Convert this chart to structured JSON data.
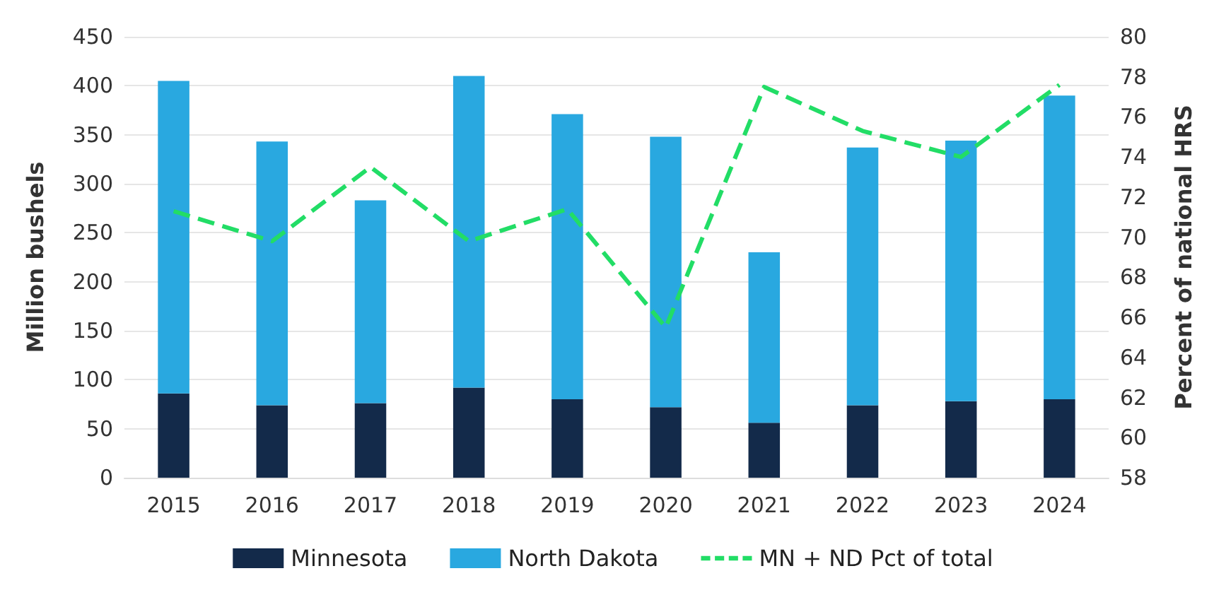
{
  "chart_data": {
    "type": "bar",
    "stacked": true,
    "categories": [
      "2015",
      "2016",
      "2017",
      "2018",
      "2019",
      "2020",
      "2021",
      "2022",
      "2023",
      "2024"
    ],
    "ylabel": "Million bushels",
    "y2label": "Percent of national HRS",
    "ylim": [
      0,
      450
    ],
    "yticks": [
      0,
      50,
      100,
      150,
      200,
      250,
      300,
      350,
      400,
      450
    ],
    "y2lim": [
      58,
      80
    ],
    "y2ticks": [
      58,
      60,
      62,
      64,
      66,
      68,
      70,
      72,
      74,
      76,
      78,
      80
    ],
    "grid": "y",
    "legend": "bottom",
    "series": [
      {
        "name": "Minnesota",
        "color": "#132a4a",
        "values": [
          86,
          74,
          76,
          92,
          80,
          72,
          56,
          74,
          78,
          80
        ]
      },
      {
        "name": "North Dakota",
        "color": "#29a8e0",
        "values": [
          319,
          269,
          207,
          318,
          291,
          276,
          174,
          263,
          266,
          310
        ]
      },
      {
        "name": "MN + ND Pct of total",
        "type": "line",
        "axis": "y2",
        "color": "#22dd66",
        "line_style": "dashed",
        "marker": "none",
        "values": [
          71.3,
          69.8,
          73.5,
          69.8,
          71.4,
          65.5,
          77.5,
          75.3,
          74,
          77.6
        ]
      }
    ]
  }
}
